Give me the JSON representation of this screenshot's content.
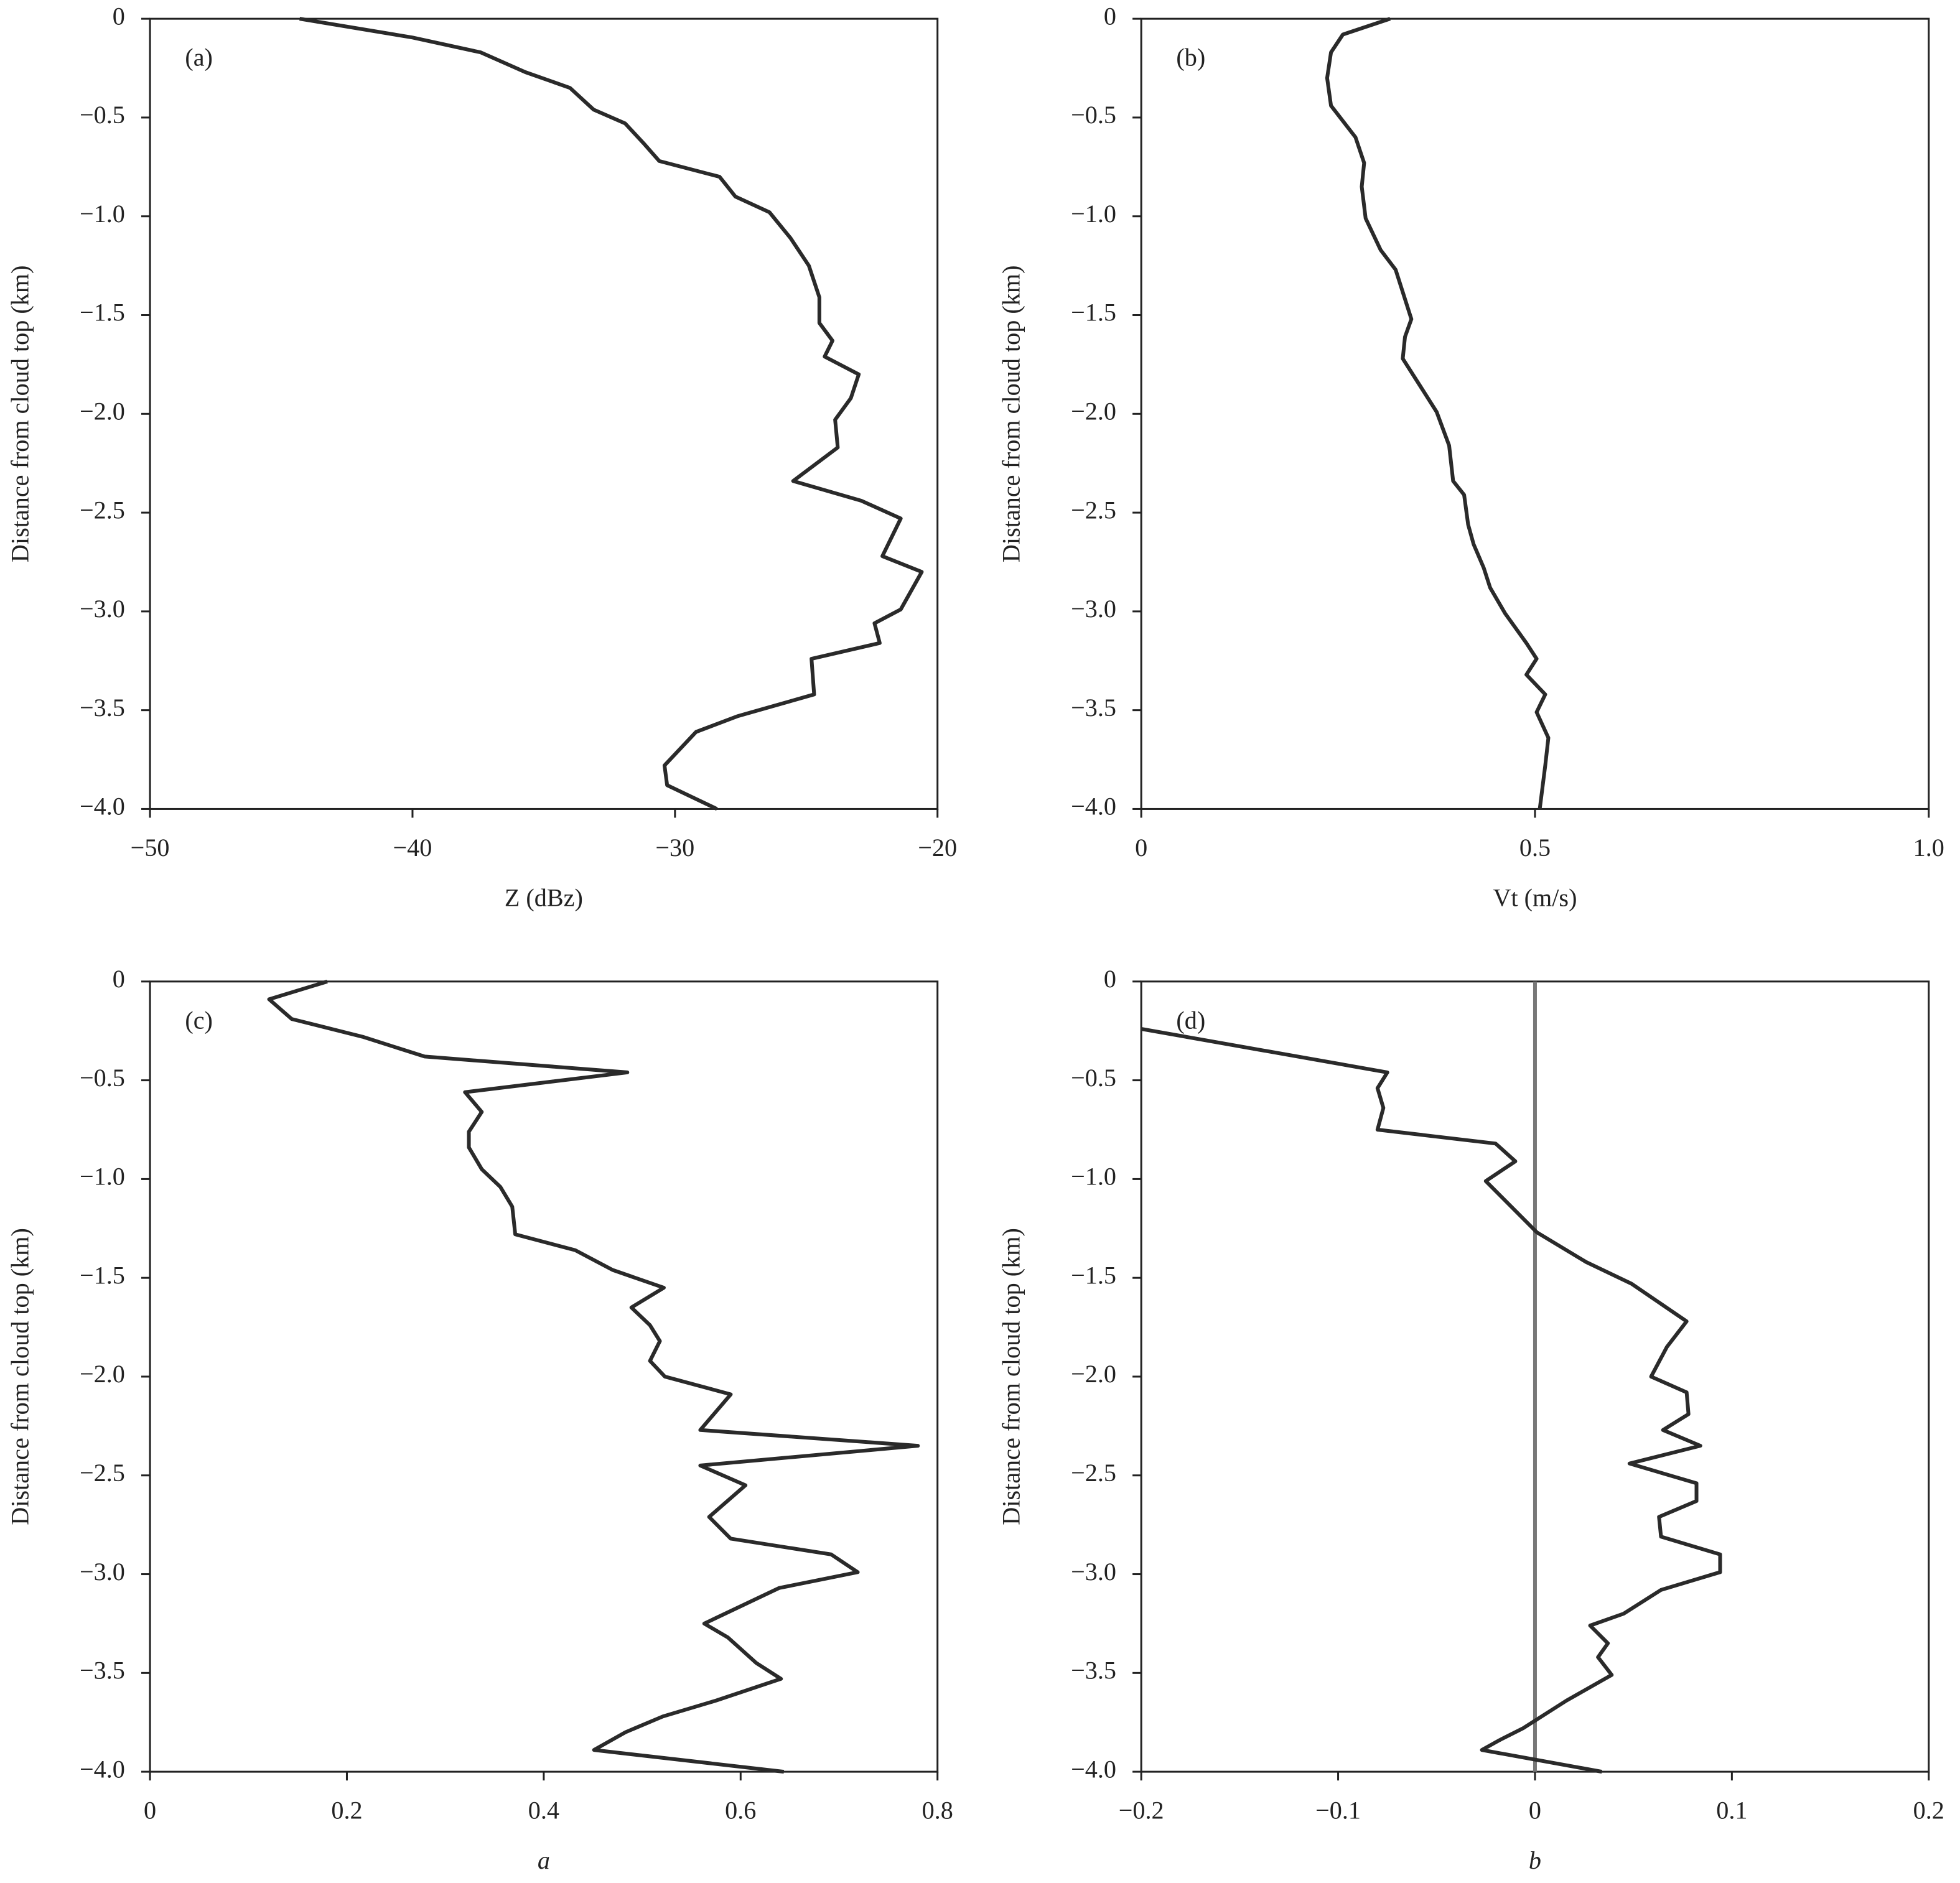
{
  "chart_data": [
    {
      "type": "line",
      "annotation": "(a)",
      "xlabel": "Z (dBz)",
      "ylabel": "Distance from cloud top (km)",
      "xlim": [
        -50,
        -20
      ],
      "ylim": [
        -4,
        0
      ],
      "xticks": [
        {
          "value": -50,
          "label": "−50"
        },
        {
          "value": -40,
          "label": "−40"
        },
        {
          "value": -30,
          "label": "−30"
        },
        {
          "value": -20,
          "label": "−20"
        }
      ],
      "yticks": [
        0,
        {
          "value": -0.5,
          "label": "−0.5"
        },
        {
          "value": -1,
          "label": "−1.0"
        },
        {
          "value": -1.5,
          "label": "−1.5"
        },
        {
          "value": -2,
          "label": "−2.0"
        },
        {
          "value": -2.5,
          "label": "−2.5"
        },
        {
          "value": -3,
          "label": "−3.0"
        },
        {
          "value": -3.5,
          "label": "−3.5"
        },
        {
          "value": -4,
          "label": "−4.0"
        }
      ],
      "color": "#2a2a2a",
      "y": [
        0,
        -0.095,
        -0.17,
        -0.27,
        -0.35,
        -0.46,
        -0.53,
        -0.63,
        -0.72,
        -0.8,
        -0.9,
        -0.98,
        -1.11,
        -1.25,
        -1.41,
        -1.54,
        -1.63,
        -1.71,
        -1.8,
        -1.92,
        -2.03,
        -2.17,
        -2.34,
        -2.44,
        -2.53,
        -2.72,
        -2.8,
        -2.99,
        -3.06,
        -3.16,
        -3.24,
        -3.42,
        -3.53,
        -3.61,
        -3.78,
        -3.88,
        -4.0
      ],
      "values": [
        -44.3,
        -40,
        -37.4,
        -35.7,
        -34.0,
        -33.1,
        -31.9,
        -31.2,
        -30.6,
        -28.3,
        -27.7,
        -26.4,
        -25.6,
        -24.9,
        -24.5,
        -24.5,
        -24.0,
        -24.3,
        -23.0,
        -23.3,
        -23.9,
        -23.8,
        -25.5,
        -22.9,
        -21.4,
        -22.1,
        -20.6,
        -21.4,
        -22.4,
        -22.2,
        -24.8,
        -24.7,
        -27.6,
        -29.2,
        -30.4,
        -30.3,
        -28.4
      ]
    },
    {
      "type": "line",
      "annotation": "(b)",
      "xlabel": "Vt (m/s)",
      "ylabel": "Distance from cloud top (km)",
      "xlim": [
        0,
        1
      ],
      "ylim": [
        -4,
        0
      ],
      "xticks": [
        0,
        0.5,
        {
          "value": 1,
          "label": "1.0"
        }
      ],
      "yticks": [
        0,
        {
          "value": -0.5,
          "label": "−0.5"
        },
        {
          "value": -1,
          "label": "−1.0"
        },
        {
          "value": -1.5,
          "label": "−1.5"
        },
        {
          "value": -2,
          "label": "−2.0"
        },
        {
          "value": -2.5,
          "label": "−2.5"
        },
        {
          "value": -3,
          "label": "−3.0"
        },
        {
          "value": -3.5,
          "label": "−3.5"
        },
        {
          "value": -4,
          "label": "−4.0"
        }
      ],
      "color": "#2a2a2a",
      "y": [
        0,
        -0.08,
        -0.17,
        -0.3,
        -0.44,
        -0.6,
        -0.73,
        -0.85,
        -1.01,
        -1.17,
        -1.27,
        -1.52,
        -1.61,
        -1.72,
        -1.87,
        -1.99,
        -2.16,
        -2.34,
        -2.41,
        -2.56,
        -2.66,
        -2.78,
        -2.88,
        -3.01,
        -3.16,
        -3.24,
        -3.32,
        -3.42,
        -3.51,
        -3.64,
        -3.78,
        -4.0
      ],
      "values": [
        0.316,
        0.256,
        0.241,
        0.236,
        0.241,
        0.272,
        0.283,
        0.28,
        0.285,
        0.304,
        0.323,
        0.343,
        0.335,
        0.332,
        0.356,
        0.375,
        0.391,
        0.396,
        0.41,
        0.415,
        0.422,
        0.435,
        0.443,
        0.462,
        0.489,
        0.502,
        0.489,
        0.513,
        0.502,
        0.517,
        0.513,
        0.506
      ]
    },
    {
      "type": "line",
      "annotation": "(c)",
      "xlabel": "a",
      "ylabel": "Distance from cloud top (km)",
      "xlim": [
        0,
        0.8
      ],
      "ylim": [
        -4,
        0
      ],
      "xticks": [
        0,
        0.2,
        0.4,
        0.6,
        0.8
      ],
      "yticks": [
        0,
        {
          "value": -0.5,
          "label": "−0.5"
        },
        {
          "value": -1,
          "label": "−1.0"
        },
        {
          "value": -1.5,
          "label": "−1.5"
        },
        {
          "value": -2,
          "label": "−2.0"
        },
        {
          "value": -2.5,
          "label": "−2.5"
        },
        {
          "value": -3,
          "label": "−3.0"
        },
        {
          "value": -3.5,
          "label": "−3.5"
        },
        {
          "value": -4,
          "label": "−4.0"
        }
      ],
      "color": "#2a2a2a",
      "y": [
        0,
        -0.09,
        -0.19,
        -0.28,
        -0.38,
        -0.46,
        -0.56,
        -0.66,
        -0.76,
        -0.84,
        -0.95,
        -1.04,
        -1.14,
        -1.28,
        -1.36,
        -1.46,
        -1.55,
        -1.65,
        -1.74,
        -1.82,
        -1.92,
        -2.0,
        -2.09,
        -2.27,
        -2.35,
        -2.45,
        -2.55,
        -2.71,
        -2.82,
        -2.9,
        -2.99,
        -3.07,
        -3.25,
        -3.32,
        -3.45,
        -3.53,
        -3.64,
        -3.72,
        -3.8,
        -3.89,
        -4.0
      ],
      "values": [
        0.18,
        0.121,
        0.144,
        0.216,
        0.279,
        0.485,
        0.32,
        0.337,
        0.324,
        0.324,
        0.337,
        0.356,
        0.368,
        0.371,
        0.432,
        0.47,
        0.522,
        0.489,
        0.508,
        0.518,
        0.508,
        0.523,
        0.59,
        0.559,
        0.78,
        0.559,
        0.605,
        0.568,
        0.59,
        0.692,
        0.719,
        0.639,
        0.563,
        0.587,
        0.616,
        0.641,
        0.575,
        0.521,
        0.483,
        0.451,
        0.644
      ]
    },
    {
      "type": "line",
      "annotation": "(d)",
      "xlabel": "b",
      "ylabel": "Distance from cloud top (km)",
      "xlim": [
        -0.2,
        0.2
      ],
      "ylim": [
        -4,
        0
      ],
      "xticks": [
        {
          "value": -0.2,
          "label": "−0.2"
        },
        {
          "value": -0.1,
          "label": "−0.1"
        },
        0,
        0.1,
        0.2
      ],
      "yticks": [
        0,
        {
          "value": -0.5,
          "label": "−0.5"
        },
        {
          "value": -1,
          "label": "−1.0"
        },
        {
          "value": -1.5,
          "label": "−1.5"
        },
        {
          "value": -2,
          "label": "−2.0"
        },
        {
          "value": -2.5,
          "label": "−2.5"
        },
        {
          "value": -3,
          "label": "−3.0"
        },
        {
          "value": -3.5,
          "label": "−3.5"
        },
        {
          "value": -4,
          "label": "−4.0"
        }
      ],
      "color": "#2a2a2a",
      "vline": 0,
      "vline_color": "#777777",
      "y": [
        -0.24,
        -0.46,
        -0.54,
        -0.64,
        -0.75,
        -0.82,
        -0.91,
        -1.01,
        -1.27,
        -1.42,
        -1.53,
        -1.72,
        -1.85,
        -2.0,
        -2.08,
        -2.19,
        -2.27,
        -2.35,
        -2.44,
        -2.54,
        -2.63,
        -2.71,
        -2.81,
        -2.9,
        -2.99,
        -3.08,
        -3.2,
        -3.26,
        -3.35,
        -3.42,
        -3.51,
        -3.64,
        -3.78,
        -3.84,
        -3.89,
        -4.0
      ],
      "values": [
        -0.2,
        -0.075,
        -0.08,
        -0.077,
        -0.08,
        -0.02,
        -0.01,
        -0.025,
        0.001,
        0.026,
        0.049,
        0.077,
        0.067,
        0.059,
        0.077,
        0.078,
        0.065,
        0.084,
        0.048,
        0.082,
        0.082,
        0.063,
        0.064,
        0.094,
        0.094,
        0.064,
        0.045,
        0.028,
        0.037,
        0.032,
        0.039,
        0.016,
        -0.006,
        -0.018,
        -0.027,
        0.034
      ]
    }
  ]
}
